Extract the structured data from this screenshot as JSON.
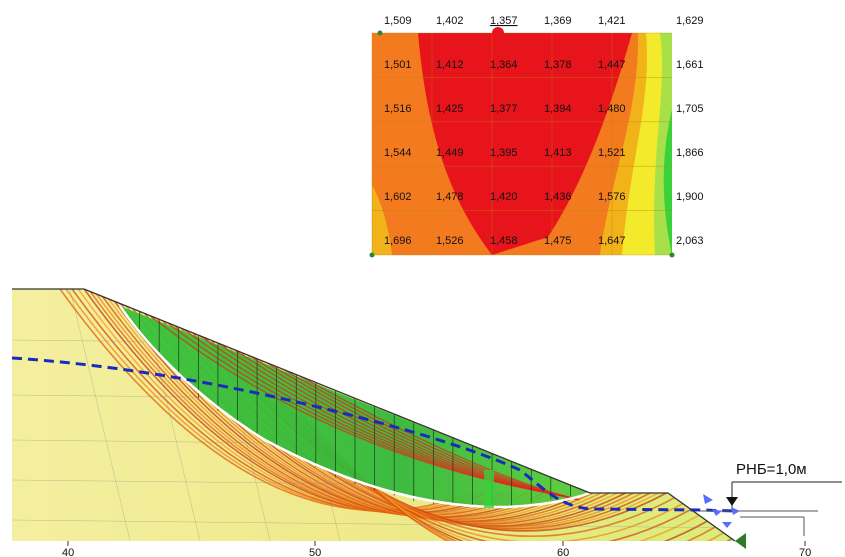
{
  "colors": {
    "critical": "#e8141c",
    "high": "#f47a1f",
    "mid": "#f2b21a",
    "yellow": "#f2ea2a",
    "light": "#c9e84a",
    "green": "#3ad13a",
    "water": "#1a2bbb",
    "slice_fill": "#2fc42f",
    "soil": "#f3f0a6",
    "outline": "#222222"
  },
  "fs_grid": {
    "columns": 6,
    "rows": 6,
    "values": [
      [
        "1,509",
        "1,402",
        "1,357",
        "1,369",
        "1,421",
        "1,629"
      ],
      [
        "1,501",
        "1,412",
        "1,364",
        "1,378",
        "1,447",
        "1,661"
      ],
      [
        "1,516",
        "1,425",
        "1,377",
        "1,394",
        "1,480",
        "1,705"
      ],
      [
        "1,544",
        "1,449",
        "1,395",
        "1,413",
        "1,521",
        "1,866"
      ],
      [
        "1,602",
        "1,478",
        "1,420",
        "1,436",
        "1,576",
        "1,900"
      ],
      [
        "1,696",
        "1,526",
        "1,458",
        "1,475",
        "1,647",
        "2,063"
      ]
    ],
    "minimum": "1,357"
  },
  "axis": {
    "x_ticks": [
      "40",
      "50",
      "60",
      "70"
    ]
  },
  "water_level": {
    "label": "РНБ=1,0м"
  },
  "slices": {
    "count": 24
  }
}
